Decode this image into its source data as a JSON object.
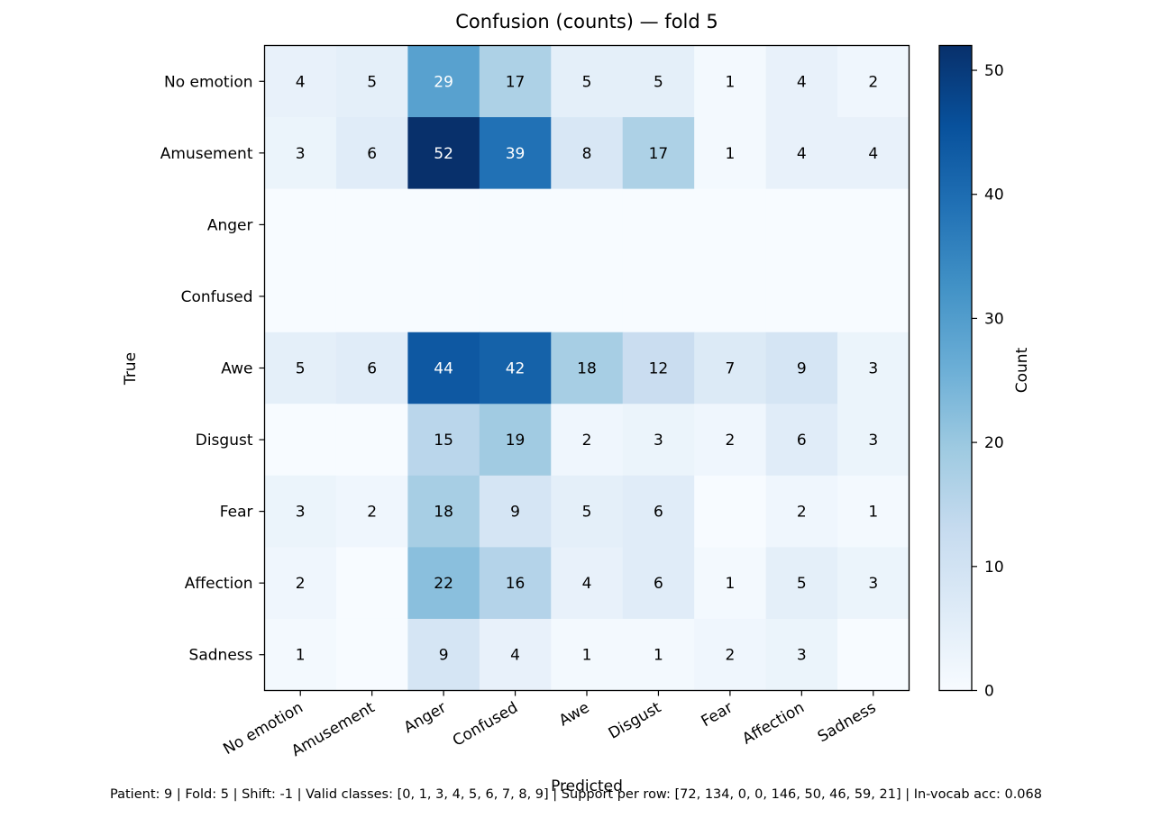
{
  "chart_data": {
    "type": "heatmap",
    "title": "Confusion (counts) — fold 5",
    "xlabel": "Predicted",
    "ylabel": "True",
    "x_categories": [
      "No emotion",
      "Amusement",
      "Anger",
      "Confused",
      "Awe",
      "Disgust",
      "Fear",
      "Affection",
      "Sadness"
    ],
    "y_categories": [
      "No emotion",
      "Amusement",
      "Anger",
      "Confused",
      "Awe",
      "Disgust",
      "Fear",
      "Affection",
      "Sadness"
    ],
    "values": [
      [
        4,
        5,
        29,
        17,
        5,
        5,
        1,
        4,
        2
      ],
      [
        3,
        6,
        52,
        39,
        8,
        17,
        1,
        4,
        4
      ],
      [
        0,
        0,
        0,
        0,
        0,
        0,
        0,
        0,
        0
      ],
      [
        0,
        0,
        0,
        0,
        0,
        0,
        0,
        0,
        0
      ],
      [
        5,
        6,
        44,
        42,
        18,
        12,
        7,
        9,
        3
      ],
      [
        0,
        0,
        15,
        19,
        2,
        3,
        2,
        6,
        3
      ],
      [
        3,
        2,
        18,
        9,
        5,
        6,
        0,
        2,
        1
      ],
      [
        2,
        0,
        22,
        16,
        4,
        6,
        1,
        5,
        3
      ],
      [
        1,
        0,
        9,
        4,
        1,
        1,
        2,
        3,
        0
      ]
    ],
    "colorbar": {
      "label": "Count",
      "min": 0,
      "max": 52,
      "ticks": [
        0,
        10,
        20,
        30,
        40,
        50
      ],
      "colormap": "Blues"
    },
    "zero_cells_labeled": false,
    "grid": false
  },
  "footer": "Patient: 9 | Fold: 5 | Shift: -1 | Valid classes: [0, 1, 3, 4, 5, 6, 7, 8, 9] | Support per row: [72, 134, 0, 0, 146, 50, 46, 59, 21] | In-vocab acc: 0.068"
}
